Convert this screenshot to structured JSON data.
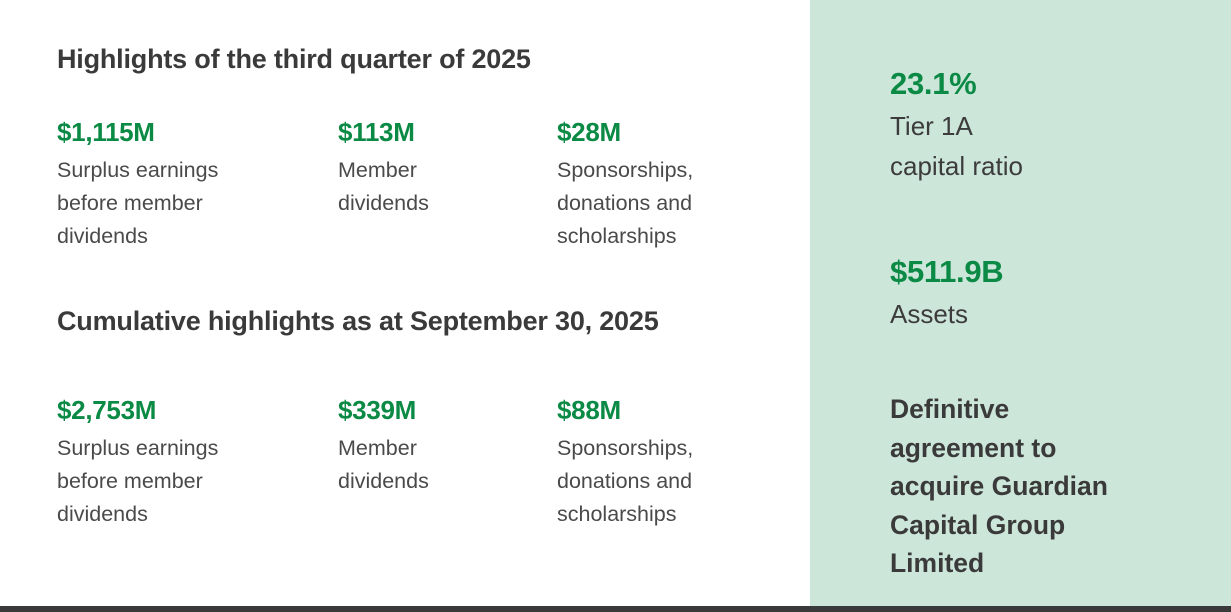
{
  "colors": {
    "accent_green": "#0b8a45",
    "panel_background": "#cde6da",
    "text_dark": "#3b3a3a",
    "text_gray": "#4b4a4a",
    "bottom_rule": "#3a3a3a"
  },
  "sections": {
    "quarter": {
      "heading": "Highlights of the third quarter of 2025",
      "stats": [
        {
          "value": "$1,115M",
          "label": "Surplus earnings\nbefore member\ndividends"
        },
        {
          "value": "$113M",
          "label": "Member\ndividends"
        },
        {
          "value": "$28M",
          "label": "Sponsorships,\ndonations and\nscholarships"
        }
      ]
    },
    "cumulative": {
      "heading": "Cumulative highlights as at September 30, 2025",
      "stats": [
        {
          "value": "$2,753M",
          "label": "Surplus earnings\nbefore member\ndividends"
        },
        {
          "value": "$339M",
          "label": "Member\ndividends"
        },
        {
          "value": "$88M",
          "label": "Sponsorships,\ndonations and\nscholarships"
        }
      ]
    }
  },
  "side_panel": {
    "metrics": [
      {
        "value": "23.1%",
        "label": "Tier 1A\ncapital ratio"
      },
      {
        "value": "$511.9B",
        "label": "Assets"
      }
    ],
    "note": "Definitive\nagreement to\nacquire Guardian\nCapital Group\nLimited"
  }
}
